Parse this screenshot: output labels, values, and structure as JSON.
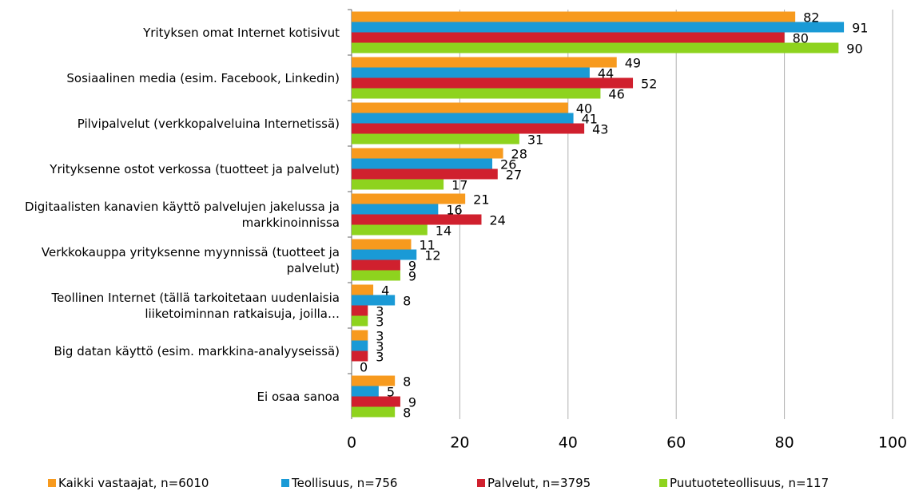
{
  "chart_data": {
    "type": "hbar",
    "categories": [
      "Yrityksen omat Internet kotisivut",
      "Sosiaalinen media (esim. Facebook, Linkedin)",
      "Pilvipalvelut  (verkkopalveluina Internetissä)",
      "Yrityksenne ostot verkossa (tuotteet ja palvelut)",
      "Digitaalisten kanavien käyttö palvelujen jakelussa ja markkinoinnissa",
      "Verkkokauppa yrityksenne myynnissä (tuotteet ja palvelut)",
      "Teollinen Internet (tällä tarkoitetaan uudenlaisia liiketoiminnan ratkaisuja, joilla…",
      "Big datan käyttö (esim. markkina-analyyseissä)",
      "Ei osaa sanoa"
    ],
    "series": [
      {
        "name": "Kaikki vastaajat, n=6010",
        "color": "#f79a1e",
        "values": [
          82,
          49,
          40,
          28,
          21,
          11,
          4,
          3,
          8
        ]
      },
      {
        "name": "Teollisuus, n=756",
        "color": "#1a9ad6",
        "values": [
          91,
          44,
          41,
          26,
          16,
          12,
          8,
          3,
          5
        ]
      },
      {
        "name": "Palvelut, n=3795",
        "color": "#d0202e",
        "values": [
          80,
          52,
          43,
          27,
          24,
          9,
          3,
          3,
          9
        ]
      },
      {
        "name": "Puutuoteteollisuus, n=117",
        "color": "#8ed31e",
        "values": [
          90,
          46,
          31,
          17,
          14,
          9,
          3,
          0,
          8
        ]
      }
    ],
    "xlim": [
      0,
      100
    ],
    "xticks": [
      0,
      20,
      40,
      60,
      80,
      100
    ],
    "grid": true,
    "legend": "bottom"
  }
}
